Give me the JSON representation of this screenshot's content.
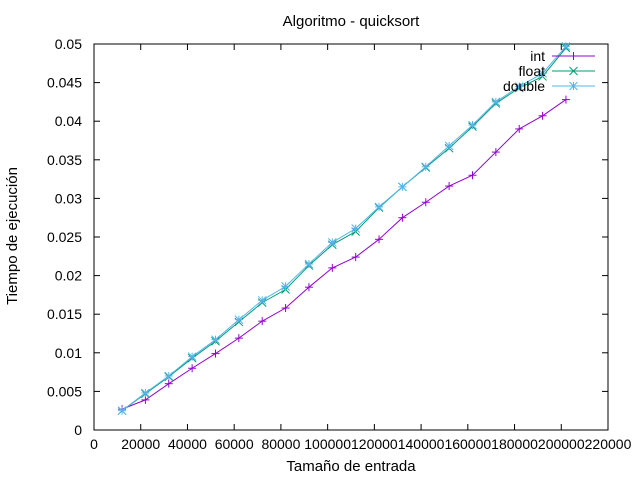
{
  "chart_data": {
    "type": "line",
    "title": "Algoritmo - quicksort",
    "xlabel": "Tamaño de entrada",
    "ylabel": "Tiempo de ejecución",
    "xlim": [
      0,
      220000
    ],
    "ylim": [
      0,
      0.05
    ],
    "x_ticks": [
      0,
      20000,
      40000,
      60000,
      80000,
      100000,
      120000,
      140000,
      160000,
      180000,
      200000,
      220000
    ],
    "y_ticks": [
      0,
      0.005,
      0.01,
      0.015,
      0.02,
      0.025,
      0.03,
      0.035,
      0.04,
      0.045,
      0.05
    ],
    "x_tick_labels": [
      "0",
      "20000",
      "40000",
      "60000",
      "80000",
      "100000",
      "120000",
      "140000",
      "160000",
      "180000",
      "200000",
      "220000"
    ],
    "y_tick_labels": [
      "0",
      "0.005",
      "0.01",
      "0.015",
      "0.02",
      "0.025",
      "0.03",
      "0.035",
      "0.04",
      "0.045",
      "0.05"
    ],
    "grid": false,
    "legend_position": "top-right",
    "x": [
      12000,
      22000,
      32000,
      42000,
      52000,
      62000,
      72000,
      82000,
      92000,
      102000,
      112000,
      122000,
      132000,
      142000,
      152000,
      162000,
      172000,
      182000,
      192000,
      202000
    ],
    "series": [
      {
        "name": "int",
        "color": "#9400d3",
        "marker": "plus",
        "values": [
          0.0027,
          0.0039,
          0.006,
          0.008,
          0.0099,
          0.0119,
          0.0141,
          0.0158,
          0.0185,
          0.021,
          0.0224,
          0.0247,
          0.0275,
          0.0295,
          0.0316,
          0.033,
          0.036,
          0.039,
          0.0407,
          0.0428
        ]
      },
      {
        "name": "float",
        "color": "#009e73",
        "marker": "cross",
        "values": [
          0.0025,
          0.0047,
          0.0069,
          0.0093,
          0.0115,
          0.014,
          0.0165,
          0.0182,
          0.0213,
          0.024,
          0.0257,
          0.0288,
          0.0315,
          0.034,
          0.0365,
          0.0393,
          0.0423,
          0.0443,
          0.0458,
          0.0495
        ]
      },
      {
        "name": "double",
        "color": "#56b4e9",
        "marker": "star",
        "values": [
          0.0025,
          0.0048,
          0.007,
          0.0095,
          0.0117,
          0.0143,
          0.0168,
          0.0186,
          0.0215,
          0.0243,
          0.0261,
          0.0289,
          0.0315,
          0.0341,
          0.0368,
          0.0395,
          0.0425,
          0.0445,
          0.0462,
          0.0497
        ]
      }
    ]
  }
}
